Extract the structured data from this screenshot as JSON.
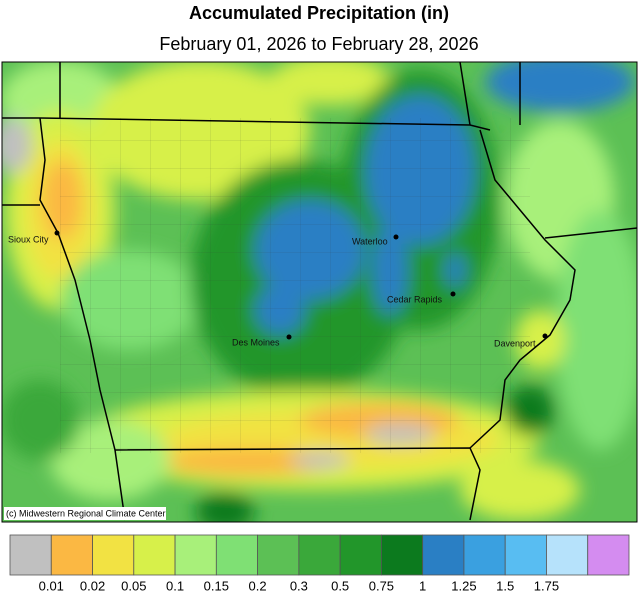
{
  "header": {
    "title": "Accumulated Precipitation (in)",
    "subtitle": "February 01, 2026 to February 28, 2026"
  },
  "map": {
    "cities": [
      "Sioux City",
      "Waterloo",
      "Cedar Rapids",
      "Des Moines",
      "Davenport"
    ],
    "credit": "(c) Midwestern Regional Climate Center"
  },
  "legend": {
    "colors": [
      "#c0c0c0",
      "#fbb843",
      "#f2e243",
      "#d7f04a",
      "#a8f07a",
      "#7fe074",
      "#5cc055",
      "#3aa83a",
      "#22962a",
      "#0c7a1e",
      "#2a7fc4",
      "#3aa0e0",
      "#58bdf2",
      "#b6e2fb",
      "#d48cf0"
    ],
    "breaks": [
      0.01,
      0.02,
      0.05,
      0.1,
      0.15,
      0.2,
      0.3,
      0.5,
      0.75,
      1,
      1.25,
      1.5,
      1.75
    ]
  }
}
